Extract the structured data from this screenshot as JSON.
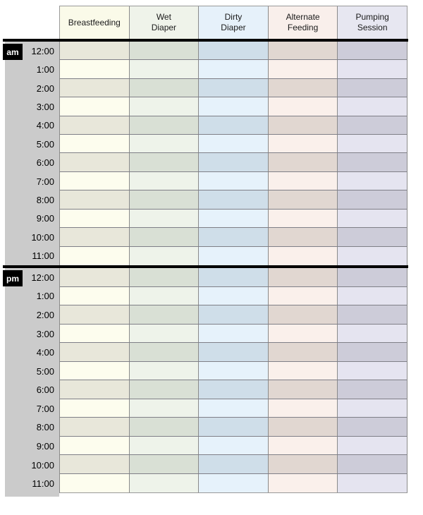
{
  "columns": [
    {
      "id": "breastfeeding",
      "label": "Breastfeeding",
      "header_bg": "#fafae9",
      "row_light": "#fdfdee",
      "row_dark": "#e8e7da"
    },
    {
      "id": "wet-diaper",
      "label": "Wet\nDiaper",
      "header_bg": "#eff3ea",
      "row_light": "#eef3ea",
      "row_dark": "#d9e0d5"
    },
    {
      "id": "dirty-diaper",
      "label": "Dirty\nDiaper",
      "header_bg": "#e6f1fa",
      "row_light": "#e6f2fb",
      "row_dark": "#cfdee9"
    },
    {
      "id": "alternate-feeding",
      "label": "Alternate\nFeeding",
      "header_bg": "#f9efeb",
      "row_light": "#faf0eb",
      "row_dark": "#e1d7d1"
    },
    {
      "id": "pumping-session",
      "label": "Pumping\nSession",
      "header_bg": "#e7e7f1",
      "row_light": "#e5e4f0",
      "row_dark": "#cdccd9"
    }
  ],
  "periods": [
    {
      "id": "am",
      "label": "am",
      "hours": [
        "12:00",
        "1:00",
        "2:00",
        "3:00",
        "4:00",
        "5:00",
        "6:00",
        "7:00",
        "8:00",
        "9:00",
        "10:00",
        "11:00"
      ]
    },
    {
      "id": "pm",
      "label": "pm",
      "hours": [
        "12:00",
        "1:00",
        "2:00",
        "3:00",
        "4:00",
        "5:00",
        "6:00",
        "7:00",
        "8:00",
        "9:00",
        "10:00",
        "11:00"
      ]
    }
  ],
  "colors": {
    "gutter": "#cbcbcb",
    "badge_bg": "#000000",
    "badge_text": "#ffffff",
    "divider": "#000000",
    "grid_line": "#7f7f87",
    "column_line": "#8a8a8a",
    "outer_border": "#999999",
    "text": "#1a1a1a",
    "page_bg": "#ffffff"
  }
}
